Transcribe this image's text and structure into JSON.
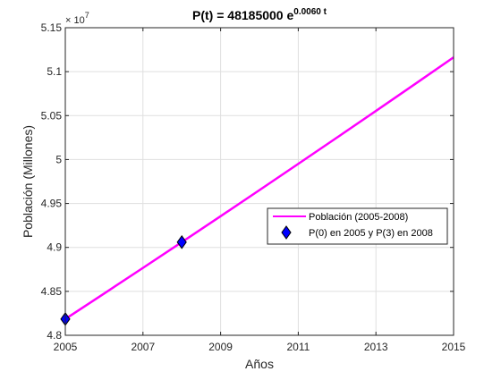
{
  "chart_data": {
    "type": "line",
    "title": "P(t) = 48185000 e",
    "title_exponent": "0.0060 t",
    "xlabel": "Años",
    "ylabel": "Población (Millones)",
    "xlim": [
      2005,
      2015
    ],
    "ylim": [
      4.8,
      5.15
    ],
    "y_scale_factor_label": "× 10",
    "y_scale_factor_exponent": "7",
    "grid": true,
    "legend_position": "right",
    "x_ticks": [
      2005,
      2007,
      2009,
      2011,
      2013,
      2015
    ],
    "x_tick_labels": [
      "2005",
      "2007",
      "2009",
      "2011",
      "2013",
      "2015"
    ],
    "y_ticks": [
      4.8,
      4.85,
      4.9,
      4.95,
      5.0,
      5.05,
      5.1,
      5.15
    ],
    "y_tick_labels": [
      "4.8",
      "4.85",
      "4.9",
      "4.95",
      "5",
      "5.05",
      "5.1",
      "5.15"
    ],
    "series": [
      {
        "name": "Población (2005-2008)",
        "kind": "line",
        "color": "#ff00ff",
        "x": [
          2005,
          2006,
          2007,
          2008,
          2009,
          2010,
          2011,
          2012,
          2013,
          2014,
          2015
        ],
        "y": [
          4.8185,
          4.8475,
          4.8767,
          4.906,
          4.9355,
          4.9652,
          4.9951,
          5.0251,
          5.0553,
          5.0857,
          5.1163
        ]
      },
      {
        "name": "P(0) en 2005 y P(3) en 2008",
        "kind": "markers",
        "marker": "diamond",
        "color": "#0000ff",
        "edge_color": "#000000",
        "x": [
          2005,
          2008
        ],
        "y": [
          4.8185,
          4.906
        ]
      }
    ]
  }
}
